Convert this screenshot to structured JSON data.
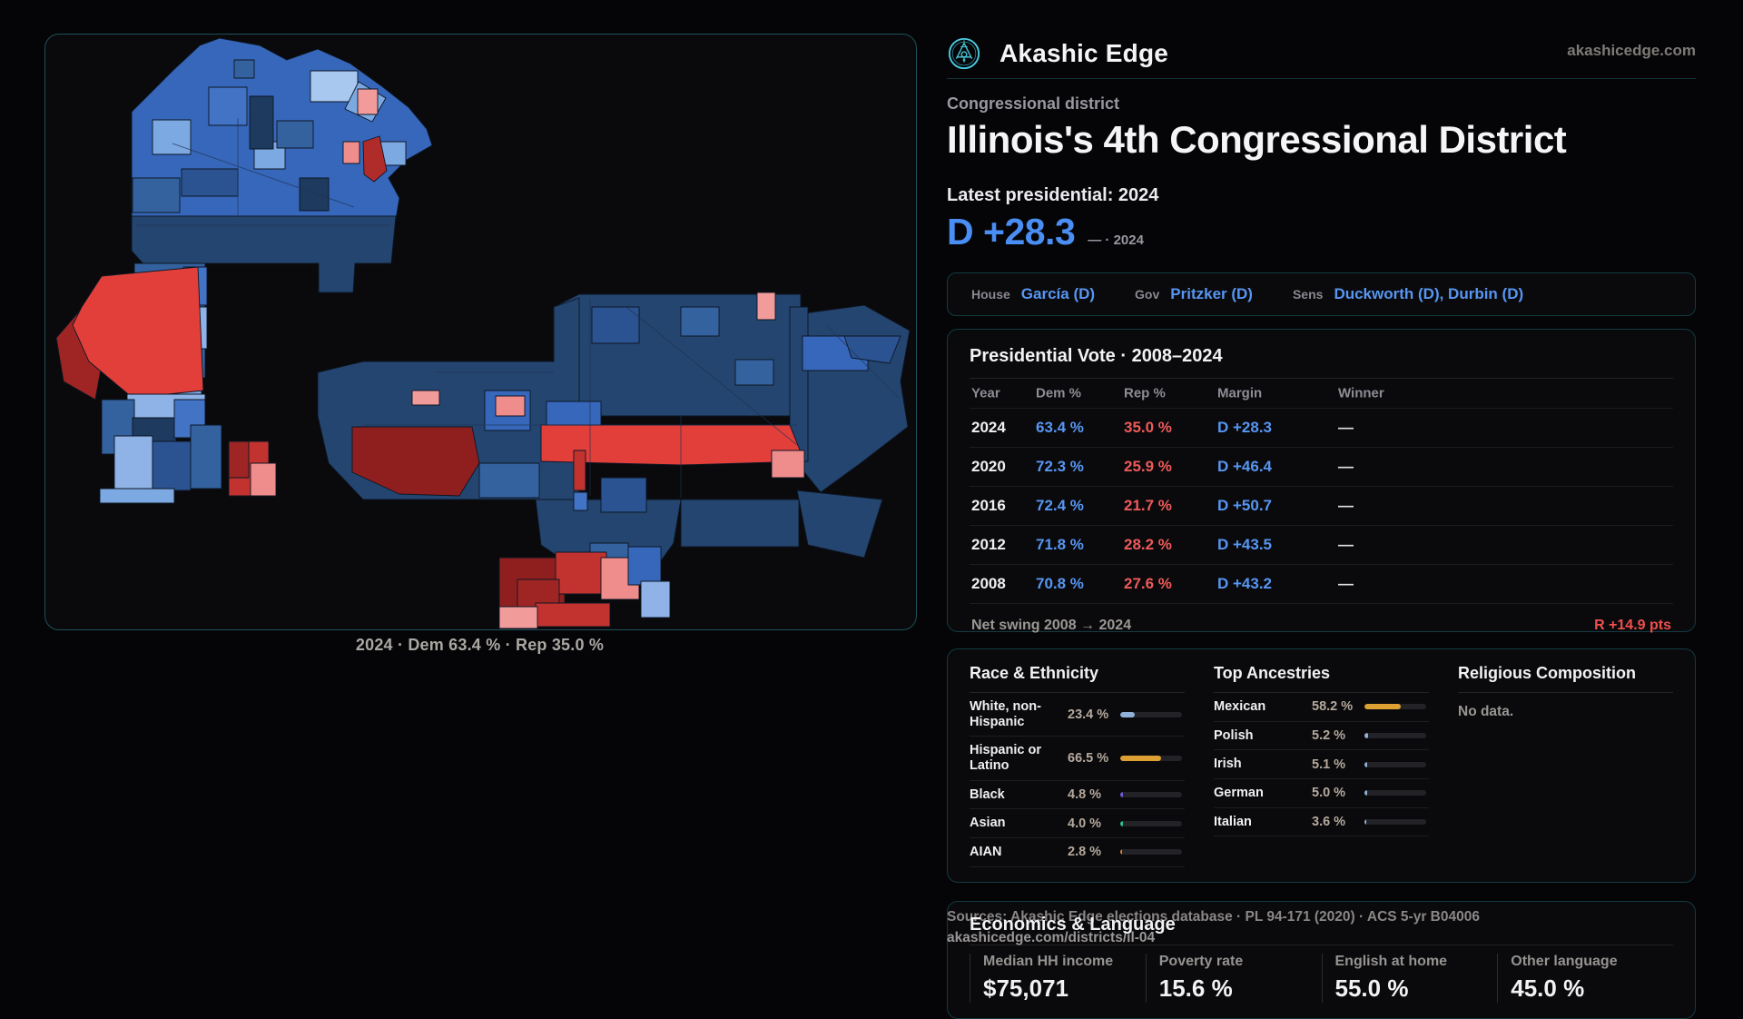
{
  "header": {
    "brand": "Akashic Edge",
    "domain": "akashicedge.com"
  },
  "hero": {
    "kicker": "Congressional district",
    "title": "Illinois's 4th Congressional District",
    "latest_label": "Latest presidential: 2024",
    "margin_value": "D +28.3",
    "margin_note": "— · 2024",
    "dem_color": "#4a8ef4",
    "rep_color": "#ee5a58"
  },
  "officials": [
    {
      "role": "House",
      "name": "García (D)"
    },
    {
      "role": "Gov",
      "name": "Pritzker (D)"
    },
    {
      "role": "Sens",
      "name": "Duckworth (D), Durbin (D)"
    }
  ],
  "chart_data": {
    "type": "table",
    "title": "Presidential Vote · 2008–2024",
    "columns": [
      "Year",
      "Dem %",
      "Rep %",
      "Margin",
      "Winner"
    ],
    "rows": [
      [
        "2024",
        "63.4 %",
        "35.0 %",
        "D +28.3",
        "—"
      ],
      [
        "2020",
        "72.3 %",
        "25.9 %",
        "D +46.4",
        "—"
      ],
      [
        "2016",
        "72.4 %",
        "21.7 %",
        "D +50.7",
        "—"
      ],
      [
        "2012",
        "71.8 %",
        "28.2 %",
        "D +43.5",
        "—"
      ],
      [
        "2008",
        "70.8 %",
        "27.6 %",
        "D +43.2",
        "—"
      ]
    ],
    "net_swing_label": "Net swing 2008 → 2024",
    "net_swing_value": "R +14.9 pts"
  },
  "demographics": {
    "race": {
      "title": "Race & Ethnicity",
      "rows": [
        {
          "label": "White, non-Hispanic",
          "value": "23.4 %",
          "pct": 23.4,
          "color": "#8fb0d8"
        },
        {
          "label": "Hispanic or Latino",
          "value": "66.5 %",
          "pct": 66.5,
          "color": "#dfa033"
        },
        {
          "label": "Black",
          "value": "4.8 %",
          "pct": 4.8,
          "color": "#6f5bd6"
        },
        {
          "label": "Asian",
          "value": "4.0 %",
          "pct": 4.0,
          "color": "#2fbf8f"
        },
        {
          "label": "AIAN",
          "value": "2.8 %",
          "pct": 2.8,
          "color": "#d9822b"
        }
      ]
    },
    "ancestries": {
      "title": "Top Ancestries",
      "rows": [
        {
          "label": "Mexican",
          "value": "58.2 %",
          "pct": 58.2,
          "color": "#dfa033"
        },
        {
          "label": "Polish",
          "value": "5.2 %",
          "pct": 5.2,
          "color": "#8fb0d8"
        },
        {
          "label": "Irish",
          "value": "5.1 %",
          "pct": 5.1,
          "color": "#8fb0d8"
        },
        {
          "label": "German",
          "value": "5.0 %",
          "pct": 5.0,
          "color": "#8fb0d8"
        },
        {
          "label": "Italian",
          "value": "3.6 %",
          "pct": 3.6,
          "color": "#8fb0d8"
        }
      ]
    },
    "religion": {
      "title": "Religious Composition",
      "empty": "No data."
    }
  },
  "economics": {
    "title": "Economics & Language",
    "stats": [
      {
        "label": "Median HH income",
        "value": "$75,071"
      },
      {
        "label": "Poverty rate",
        "value": "15.6 %"
      },
      {
        "label": "English at home",
        "value": "55.0 %"
      },
      {
        "label": "Other language",
        "value": "45.0 %"
      }
    ]
  },
  "footer": {
    "sources": "Sources: Akashic Edge elections database · PL 94-171 (2020) · ACS 5-yr B04006",
    "permalink": "akashicedge.com/districts/il-04"
  },
  "map": {
    "caption": "2024 · Dem 63.4 % · Rep 35.0 %",
    "dem_shades": [
      "#a9c8ef",
      "#7ca9e2",
      "#3767ba",
      "#34629f",
      "#24456f"
    ],
    "rep_shades": [
      "#f29b9b",
      "#ef8d8d",
      "#e23f3b",
      "#c23330",
      "#8f1f1f"
    ]
  }
}
